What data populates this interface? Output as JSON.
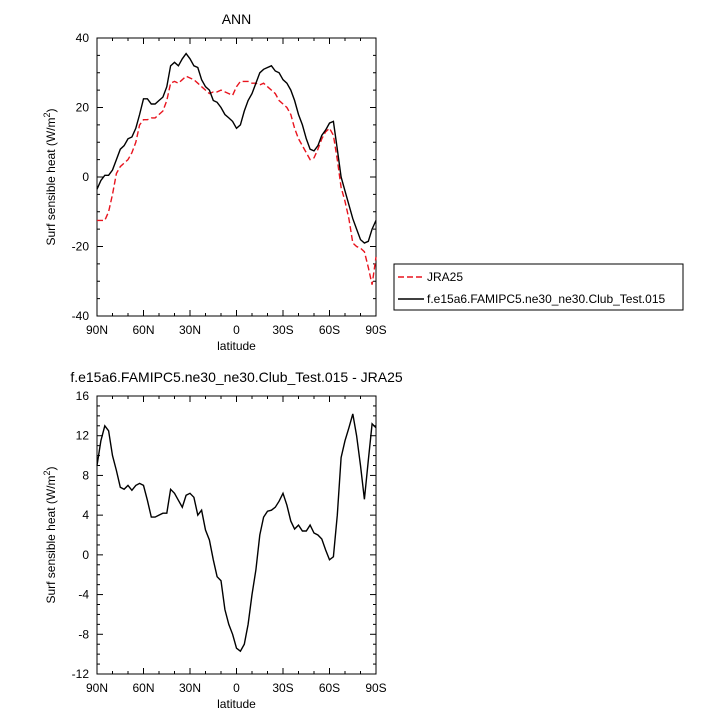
{
  "chart_data": [
    {
      "type": "line",
      "title": "ANN",
      "xlabel": "latitude",
      "ylabel": "Surf sensible heat (W/m",
      "ylabel_sup": "2",
      "ylabel_close": ")",
      "xlim": [
        90,
        -90
      ],
      "ylim": [
        -40,
        40
      ],
      "x_ticks": [
        90,
        60,
        30,
        0,
        -30,
        -60,
        -90
      ],
      "x_tick_labels": [
        "90N",
        "60N",
        "30N",
        "0",
        "30S",
        "60S",
        "90S"
      ],
      "y_ticks": [
        -40,
        -20,
        0,
        20,
        40
      ],
      "y_tick_labels": [
        "-40",
        "-20",
        "0",
        "20",
        "40"
      ],
      "legend_position": "right",
      "series": [
        {
          "name": "JRA25",
          "color": "#e8141e",
          "dash": "dashed",
          "x": [
            90,
            87.5,
            85,
            82.5,
            80,
            77.5,
            75,
            72.5,
            70,
            67.5,
            65,
            62.5,
            60,
            57.5,
            55,
            52.5,
            50,
            47.5,
            45,
            42.5,
            40,
            37.5,
            35,
            32.5,
            30,
            27.5,
            25,
            22.5,
            20,
            17.5,
            15,
            12.5,
            10,
            7.5,
            5,
            2.5,
            0,
            -2.5,
            -5,
            -7.5,
            -10,
            -12.5,
            -15,
            -17.5,
            -20,
            -22.5,
            -25,
            -27.5,
            -30,
            -32.5,
            -35,
            -37.5,
            -40,
            -42.5,
            -45,
            -47.5,
            -50,
            -52.5,
            -55,
            -57.5,
            -60,
            -62.5,
            -65,
            -67.5,
            -70,
            -72.5,
            -75,
            -77.5,
            -80,
            -82.5,
            -85,
            -87.5,
            -90
          ],
          "y": [
            -12.5,
            -12.5,
            -12.5,
            -10,
            -5,
            1,
            3,
            4,
            5,
            7,
            10,
            15,
            16.5,
            16.5,
            17,
            17,
            18,
            19,
            22,
            27,
            27.5,
            27,
            28,
            29,
            28.5,
            28,
            27,
            26,
            25,
            24,
            24.5,
            24.5,
            25,
            24.5,
            24,
            23.5,
            26,
            27.5,
            27.5,
            27.5,
            27,
            27,
            26.5,
            27,
            26,
            25,
            24,
            22,
            21,
            20,
            18,
            14,
            11,
            9,
            7,
            5,
            5.5,
            8,
            11,
            13,
            14,
            12,
            5,
            -3,
            -7,
            -12,
            -19,
            -20,
            -20.5,
            -21.5,
            -26,
            -31,
            -23
          ]
        },
        {
          "name": "f.e15a6.FAMIPC5.ne30_ne30.Club_Test.015",
          "color": "#000000",
          "dash": "solid",
          "x": [
            90,
            87.5,
            85,
            82.5,
            80,
            77.5,
            75,
            72.5,
            70,
            67.5,
            65,
            62.5,
            60,
            57.5,
            55,
            52.5,
            50,
            47.5,
            45,
            42.5,
            40,
            37.5,
            35,
            32.5,
            30,
            27.5,
            25,
            22.5,
            20,
            17.5,
            15,
            12.5,
            10,
            7.5,
            5,
            2.5,
            0,
            -2.5,
            -5,
            -7.5,
            -10,
            -12.5,
            -15,
            -17.5,
            -20,
            -22.5,
            -25,
            -27.5,
            -30,
            -32.5,
            -35,
            -37.5,
            -40,
            -42.5,
            -45,
            -47.5,
            -50,
            -52.5,
            -55,
            -57.5,
            -60,
            -62.5,
            -65,
            -67.5,
            -70,
            -72.5,
            -75,
            -77.5,
            -80,
            -82.5,
            -85,
            -87.5,
            -90
          ],
          "y": [
            -3.5,
            -1,
            0.5,
            0.5,
            2,
            5,
            8,
            9,
            11,
            11.5,
            14,
            18,
            22.5,
            22.5,
            21,
            21,
            22,
            23,
            26,
            32,
            33,
            32,
            34,
            35.5,
            34,
            32,
            31.5,
            28,
            26,
            25,
            22,
            21.5,
            20,
            18,
            17,
            16,
            14,
            15,
            19,
            22,
            24,
            27,
            30,
            31,
            31.5,
            32,
            30.5,
            30,
            28,
            27,
            25,
            22,
            18,
            15,
            11,
            8,
            7.5,
            9,
            12,
            13.5,
            15.5,
            16,
            8,
            0,
            -4,
            -8,
            -12,
            -15,
            -18,
            -19,
            -18.5,
            -15,
            -12.5
          ]
        }
      ]
    },
    {
      "type": "line",
      "title": "f.e15a6.FAMIPC5.ne30_ne30.Club_Test.015 - JRA25",
      "xlabel": "latitude",
      "ylabel": "Surf sensible heat (W/m",
      "ylabel_sup": "2",
      "ylabel_close": ")",
      "xlim": [
        90,
        -90
      ],
      "ylim": [
        -12,
        16
      ],
      "x_ticks": [
        90,
        60,
        30,
        0,
        -30,
        -60,
        -90
      ],
      "x_tick_labels": [
        "90N",
        "60N",
        "30N",
        "0",
        "30S",
        "60S",
        "90S"
      ],
      "y_ticks": [
        -12,
        -8,
        -4,
        0,
        4,
        8,
        12,
        16
      ],
      "y_tick_labels": [
        "-12",
        "-8",
        "-4",
        "0",
        "4",
        "8",
        "12",
        "16"
      ],
      "series": [
        {
          "color": "#000000",
          "dash": "solid",
          "x": [
            90,
            87.5,
            85,
            82.5,
            80,
            77.5,
            75,
            72.5,
            70,
            67.5,
            65,
            62.5,
            60,
            57.5,
            55,
            52.5,
            50,
            47.5,
            45,
            42.5,
            40,
            37.5,
            35,
            32.5,
            30,
            27.5,
            25,
            22.5,
            20,
            17.5,
            15,
            12.5,
            10,
            7.5,
            5,
            2.5,
            0,
            -2.5,
            -5,
            -7.5,
            -10,
            -12.5,
            -15,
            -17.5,
            -20,
            -22.5,
            -25,
            -27.5,
            -30,
            -32.5,
            -35,
            -37.5,
            -40,
            -42.5,
            -45,
            -47.5,
            -50,
            -52.5,
            -55,
            -57.5,
            -60,
            -62.5,
            -65,
            -67.5,
            -70,
            -72.5,
            -75,
            -77.5,
            -80,
            -82.5,
            -85,
            -87.5,
            -90
          ],
          "y": [
            9,
            11.5,
            13,
            12.5,
            10,
            8.5,
            6.8,
            6.6,
            7,
            6.5,
            7,
            7.2,
            7,
            5.5,
            3.8,
            3.8,
            4,
            4.2,
            4.2,
            6.6,
            6.2,
            5.5,
            4.8,
            6,
            6.2,
            5.8,
            4,
            4.5,
            2.5,
            1.5,
            -0.5,
            -2.2,
            -2.6,
            -5.5,
            -7,
            -8,
            -9.4,
            -9.7,
            -9,
            -7,
            -4,
            -1.5,
            2,
            3.8,
            4.4,
            4.5,
            4.8,
            5.4,
            6.2,
            5,
            3.4,
            2.6,
            3,
            2.4,
            2.4,
            3,
            2.2,
            2,
            1.6,
            0.5,
            -0.5,
            -0.2,
            4,
            9.8,
            11.5,
            12.8,
            14.2,
            12,
            9,
            5.6,
            9.5,
            13.2,
            12.8
          ]
        }
      ]
    }
  ]
}
